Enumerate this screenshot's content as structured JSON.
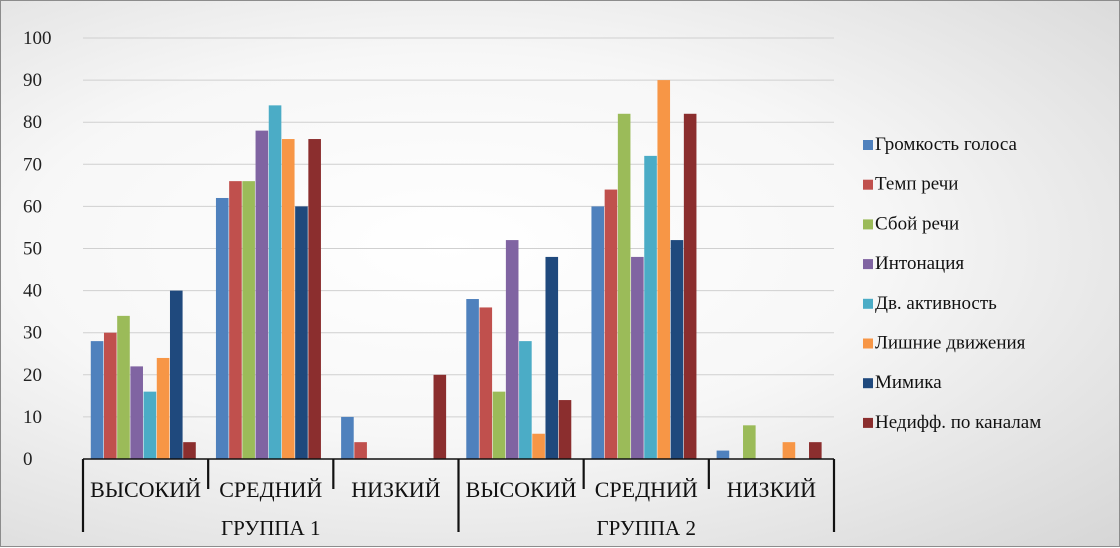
{
  "chart_data": {
    "type": "bar",
    "groups": [
      {
        "name": "ГРУППА 1",
        "categories": [
          "ВЫСОКИЙ",
          "СРЕДНИЙ",
          "НИЗКИЙ"
        ]
      },
      {
        "name": "ГРУППА 2",
        "categories": [
          "ВЫСОКИЙ",
          "СРЕДНИЙ",
          "НИЗКИЙ"
        ]
      }
    ],
    "categories": [
      "ВЫСОКИЙ",
      "СРЕДНИЙ",
      "НИЗКИЙ",
      "ВЫСОКИЙ",
      "СРЕДНИЙ",
      "НИЗКИЙ"
    ],
    "series": [
      {
        "name": "Громкость голоса",
        "color": "#4f81bd",
        "values": [
          28,
          62,
          10,
          38,
          60,
          2
        ]
      },
      {
        "name": "Темп речи",
        "color": "#c0504d",
        "values": [
          30,
          66,
          4,
          36,
          64,
          0
        ]
      },
      {
        "name": "Сбой речи",
        "color": "#9bbb59",
        "values": [
          34,
          66,
          0,
          16,
          82,
          8
        ]
      },
      {
        "name": "Интонация",
        "color": "#8064a2",
        "values": [
          22,
          78,
          0,
          52,
          48,
          0
        ]
      },
      {
        "name": "Дв. активность",
        "color": "#4bacc6",
        "values": [
          16,
          84,
          0,
          28,
          72,
          0
        ]
      },
      {
        "name": "Лишние движения",
        "color": "#f79646",
        "values": [
          24,
          76,
          0,
          6,
          90,
          4
        ]
      },
      {
        "name": "Мимика",
        "color": "#1f497d",
        "values": [
          40,
          60,
          0,
          48,
          52,
          0
        ]
      },
      {
        "name": "Недифф. по каналам",
        "color": "#8b2e2e",
        "values": [
          4,
          76,
          20,
          14,
          82,
          4
        ]
      }
    ],
    "ylim": [
      0,
      100
    ],
    "yticks": [
      "0",
      "10",
      "20",
      "30",
      "40",
      "50",
      "60",
      "70",
      "80",
      "90",
      "100"
    ],
    "grid": true,
    "legend": "right"
  }
}
